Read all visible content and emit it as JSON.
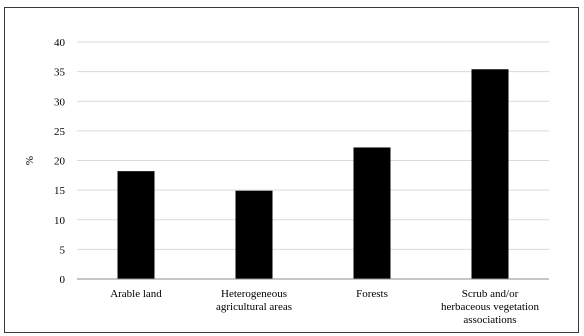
{
  "chart_data": {
    "type": "bar",
    "title": "",
    "xlabel": "",
    "ylabel": "%",
    "ylim": [
      0,
      40
    ],
    "yticks": [
      0,
      5,
      10,
      15,
      20,
      25,
      30,
      35,
      40
    ],
    "grid": true,
    "legend": "none",
    "bar_color": "#000000",
    "categories": [
      [
        "Arable land"
      ],
      [
        "Heterogeneous",
        "agricultural areas"
      ],
      [
        "Forests"
      ],
      [
        "Scrub and/or",
        "herbaceous vegetation",
        "associations"
      ]
    ],
    "values": [
      18.2,
      14.9,
      22.2,
      35.4
    ]
  }
}
